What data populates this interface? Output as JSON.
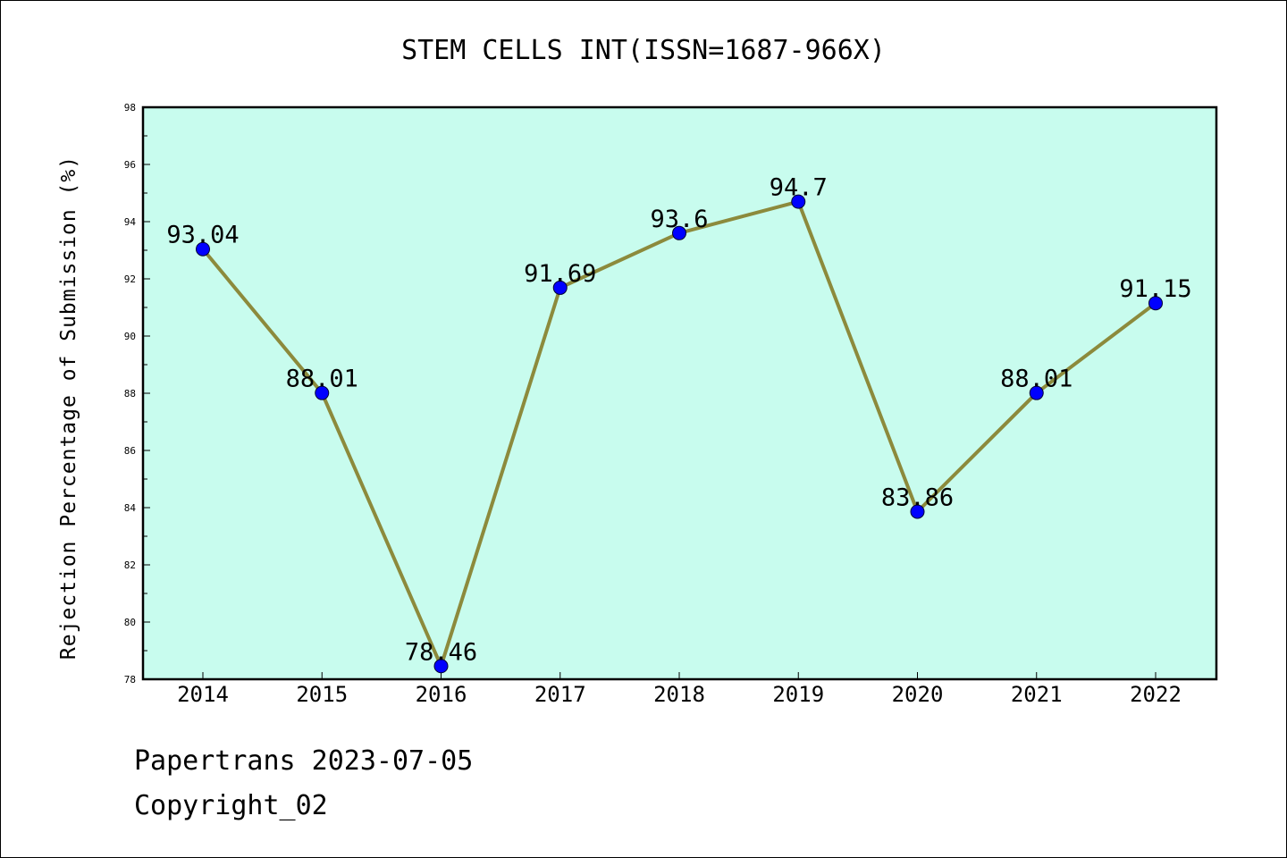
{
  "chart_data": {
    "type": "line",
    "title": "STEM CELLS INT(ISSN=1687-966X)",
    "xlabel": "",
    "ylabel": "Rejection Percentage of Submission (%)",
    "categories": [
      "2014",
      "2015",
      "2016",
      "2017",
      "2018",
      "2019",
      "2020",
      "2021",
      "2022"
    ],
    "series": [
      {
        "values": [
          93.04,
          88.01,
          78.46,
          91.69,
          93.6,
          94.7,
          83.86,
          88.01,
          91.15
        ],
        "data_labels": [
          "93.04",
          "88.01",
          "78.46",
          "91.69",
          "93.6",
          "94.7",
          "83.86",
          "88.01",
          "91.15"
        ]
      }
    ],
    "ylim": [
      78,
      98
    ],
    "yticks": [
      "78",
      "80",
      "82",
      "84",
      "86",
      "88",
      "90",
      "92",
      "94",
      "96",
      "98"
    ],
    "grid": false,
    "legend": "none"
  },
  "colors": {
    "plot_background": "#c8fcee",
    "line": "#8c8a3c",
    "marker": "#0000ff",
    "axis": "#000000"
  },
  "footer": {
    "line1": "Papertrans 2023-07-05",
    "line2": "Copyright_02"
  }
}
